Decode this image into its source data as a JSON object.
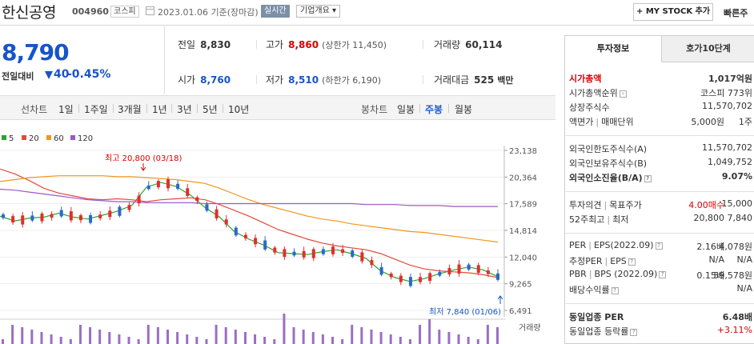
{
  "header": {
    "company_name": "한신공영",
    "code": "004960",
    "market": "코스피",
    "date_text": "2023.01.06  기준(장마감)",
    "realtime": "실시간",
    "overview": "기업개요 ▾",
    "mystock": "+ MY STOCK 추가",
    "quick": "빠른주"
  },
  "price": {
    "current": "8,790",
    "change_label": "전일대비",
    "change": "40",
    "change_pct": "-0.45%"
  },
  "stats": {
    "prev_label": "전일",
    "prev": "8,830",
    "high_label": "고가",
    "high": "8,860",
    "upper_limit": "(상한가 11,450)",
    "volume_label": "거래량",
    "volume": "60,114",
    "open_label": "시가",
    "open": "8,760",
    "low_label": "저가",
    "low": "8,510",
    "lower_limit": "(하한가 6,190)",
    "amount_label": "거래대금",
    "amount": "525",
    "amount_unit": "백만"
  },
  "chart_tabs": {
    "line_label": "선차트",
    "periods": [
      "1일",
      "1주일",
      "3개월",
      "1년",
      "3년",
      "5년",
      "10년"
    ],
    "candle_label": "봉차트",
    "candles": [
      "일봉",
      "주봉",
      "월봉"
    ]
  },
  "legend": [
    {
      "name": "5",
      "color": "#2aa52a"
    },
    {
      "name": "20",
      "color": "#e24a3a"
    },
    {
      "name": "60",
      "color": "#f0961e"
    },
    {
      "name": "120",
      "color": "#9b59c9"
    }
  ],
  "chart_data": {
    "type": "line",
    "title": "",
    "y_ticks": [
      "23,138",
      "20,364",
      "17,589",
      "14,814",
      "12,040",
      "9,265",
      "6,491"
    ],
    "ylim": [
      6491,
      23138
    ],
    "annotations": {
      "high": "최고 20,800 (03/18)",
      "low": "최저 7,840 (01/06)"
    },
    "volume_label": "거래량",
    "series": [
      {
        "name": "5",
        "values": [
          16300,
          15800,
          16100,
          16200,
          16600,
          16200,
          16000,
          16400,
          16800,
          17400,
          19300,
          19800,
          19400,
          18500,
          17200,
          16200,
          14700,
          13900,
          13300,
          12500,
          12400,
          12300,
          12600,
          12800,
          12400,
          11900,
          10600,
          9900,
          9500,
          9800,
          10300,
          10700,
          11000,
          10700,
          10000
        ]
      },
      {
        "name": "20",
        "values": [
          21200,
          20700,
          20000,
          19200,
          18700,
          18400,
          18100,
          18000,
          18100,
          18000,
          17800,
          18000,
          18100,
          18200,
          18000,
          17500,
          16900,
          16300,
          15600,
          14900,
          14400,
          13900,
          13500,
          13200,
          13000,
          12800,
          12400,
          11800,
          11200,
          10800,
          10600,
          10500,
          10400,
          10200,
          9900
        ]
      },
      {
        "name": "60",
        "values": [
          19900,
          20100,
          20300,
          20400,
          20500,
          20500,
          20500,
          20500,
          20400,
          20400,
          20300,
          20200,
          20100,
          19900,
          19700,
          19200,
          18600,
          18000,
          17500,
          17100,
          16700,
          16300,
          16000,
          15800,
          15500,
          15300,
          15100,
          14900,
          14700,
          14600,
          14400,
          14200,
          14000,
          13800,
          13600
        ]
      },
      {
        "name": "120",
        "values": [
          19100,
          19000,
          18800,
          18600,
          18400,
          18200,
          18000,
          17900,
          17800,
          17800,
          17700,
          17700,
          17700,
          17700,
          17600,
          17600,
          17600,
          17600,
          17600,
          17600,
          17600,
          17600,
          17600,
          17600,
          17600,
          17500,
          17500,
          17500,
          17400,
          17400,
          17400,
          17300,
          17300,
          17300,
          17300
        ]
      }
    ]
  },
  "right_panel": {
    "tab_active": "투자정보",
    "tab_inactive": "호가10단계",
    "rows": {
      "mcap_k": "시가총액",
      "mcap_v": "1,017억원",
      "rank_k": "시가총액순위",
      "rank_v": "코스피 773위",
      "shares_k": "상장주식수",
      "shares_v": "11,570,702",
      "par_k": "액면가",
      "par_k2": "매매단위",
      "par_v": "5,000원",
      "par_v2": "1주",
      "flimit_k": "외국인한도주식수(A)",
      "flimit_v": "11,570,702",
      "fhold_k": "외국인보유주식수(B)",
      "fhold_v": "1,049,752",
      "fratio_k": "외국인소진율(B/A)",
      "fratio_v": "9.07%",
      "opinion_k": "투자의견",
      "opinion_k2": "목표주가",
      "opinion_v": "4.00매수",
      "opinion_v2": "15,000",
      "w52_k": "52주최고",
      "w52_k2": "최저",
      "w52_v": "20,800",
      "w52_v2": "7,840",
      "per_k": "PER",
      "per_k2": "EPS(2022.09)",
      "per_v": "2.16배",
      "per_v2": "4,078원",
      "eper_k": "추정PER",
      "eper_k2": "EPS",
      "eper_v": "N/A",
      "eper_v2": "N/A",
      "pbr_k": "PBR",
      "pbr_k2": "BPS (2022.09)",
      "pbr_v": "0.15배",
      "pbr_v2": "59,578원",
      "div_k": "배당수익률",
      "div_v": "N/A",
      "iper_k": "동일업종 PER",
      "iper_v": "6.48배",
      "irate_k": "동일업종 등락률",
      "irate_v": "+3.11%"
    }
  }
}
